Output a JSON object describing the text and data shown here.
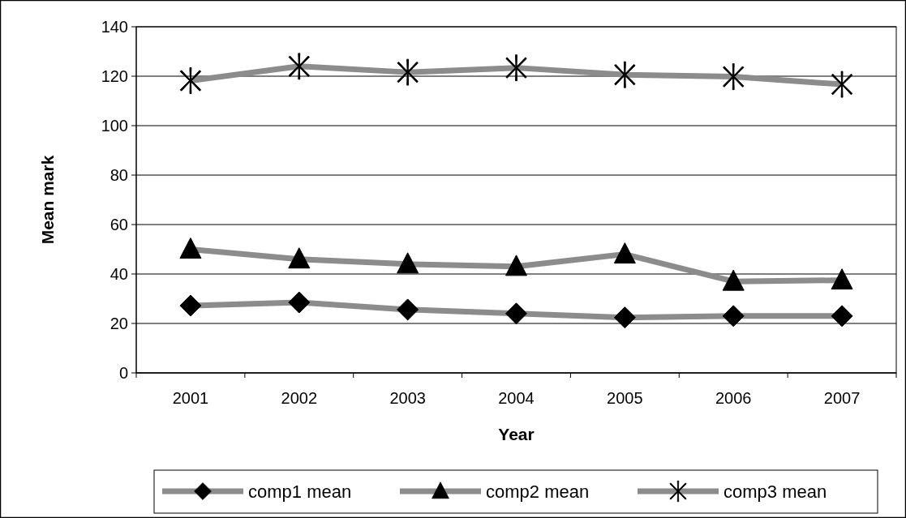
{
  "chart_data": {
    "type": "line",
    "xlabel": "Year",
    "ylabel": "Mean mark",
    "categories": [
      "2001",
      "2002",
      "2003",
      "2004",
      "2005",
      "2006",
      "2007"
    ],
    "series": [
      {
        "name": "comp1 mean",
        "color": "#8c8c8c",
        "marker": "diamond",
        "values": [
          27.2,
          28.5,
          25.6,
          24,
          22.4,
          23,
          23
        ]
      },
      {
        "name": "comp2 mean",
        "color": "#8c8c8c",
        "marker": "triangle",
        "values": [
          50,
          46,
          44,
          43,
          48,
          37,
          37.5
        ]
      },
      {
        "name": "comp3 mean",
        "color": "#8c8c8c",
        "marker": "star",
        "values": [
          118.2,
          124,
          121.6,
          123.4,
          120.6,
          119.8,
          116.7
        ]
      }
    ],
    "ylim": [
      0,
      140
    ],
    "yticks": [
      0,
      20,
      40,
      60,
      80,
      100,
      120,
      140
    ],
    "grid": "y",
    "legend": "bottom"
  }
}
